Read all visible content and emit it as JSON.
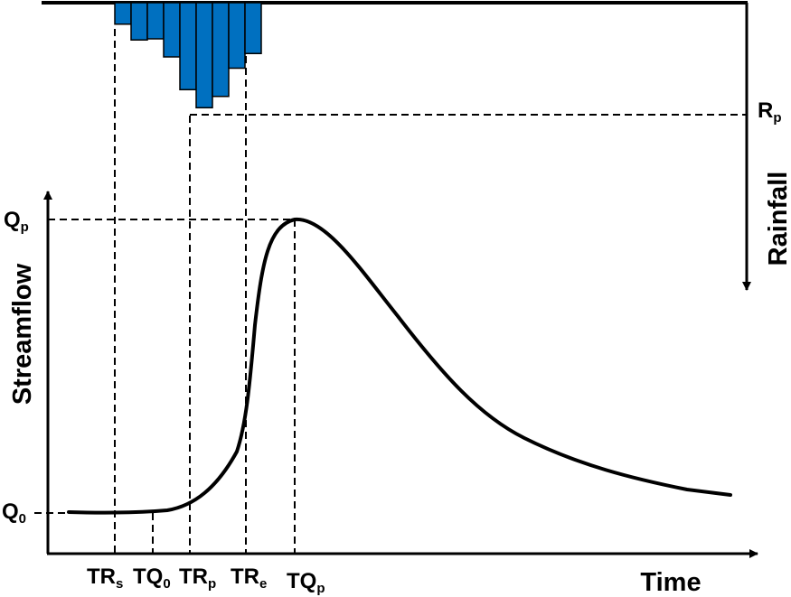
{
  "diagram": {
    "axes": {
      "y_title": "Streamflow",
      "x_title": "Time",
      "rain_title": "Rainfall"
    },
    "labels": {
      "qp": {
        "main": "Q",
        "sub": "p"
      },
      "q0": {
        "main": "Q",
        "sub": "0"
      },
      "rp": {
        "main": "R",
        "sub": "p"
      },
      "trs": {
        "main": "TR",
        "sub": "s"
      },
      "tq0": {
        "main": "TQ",
        "sub": "0"
      },
      "trp": {
        "main": "TR",
        "sub": "p"
      },
      "tre": {
        "main": "TR",
        "sub": "e"
      },
      "tqp": {
        "main": "TQ",
        "sub": "p"
      }
    },
    "rainfall_bars": [
      0.19,
      0.33,
      0.32,
      0.48,
      0.77,
      0.93,
      0.83,
      0.58,
      0.45
    ],
    "colors": {
      "bar_fill": "#0070C0",
      "line": "#000000"
    }
  }
}
